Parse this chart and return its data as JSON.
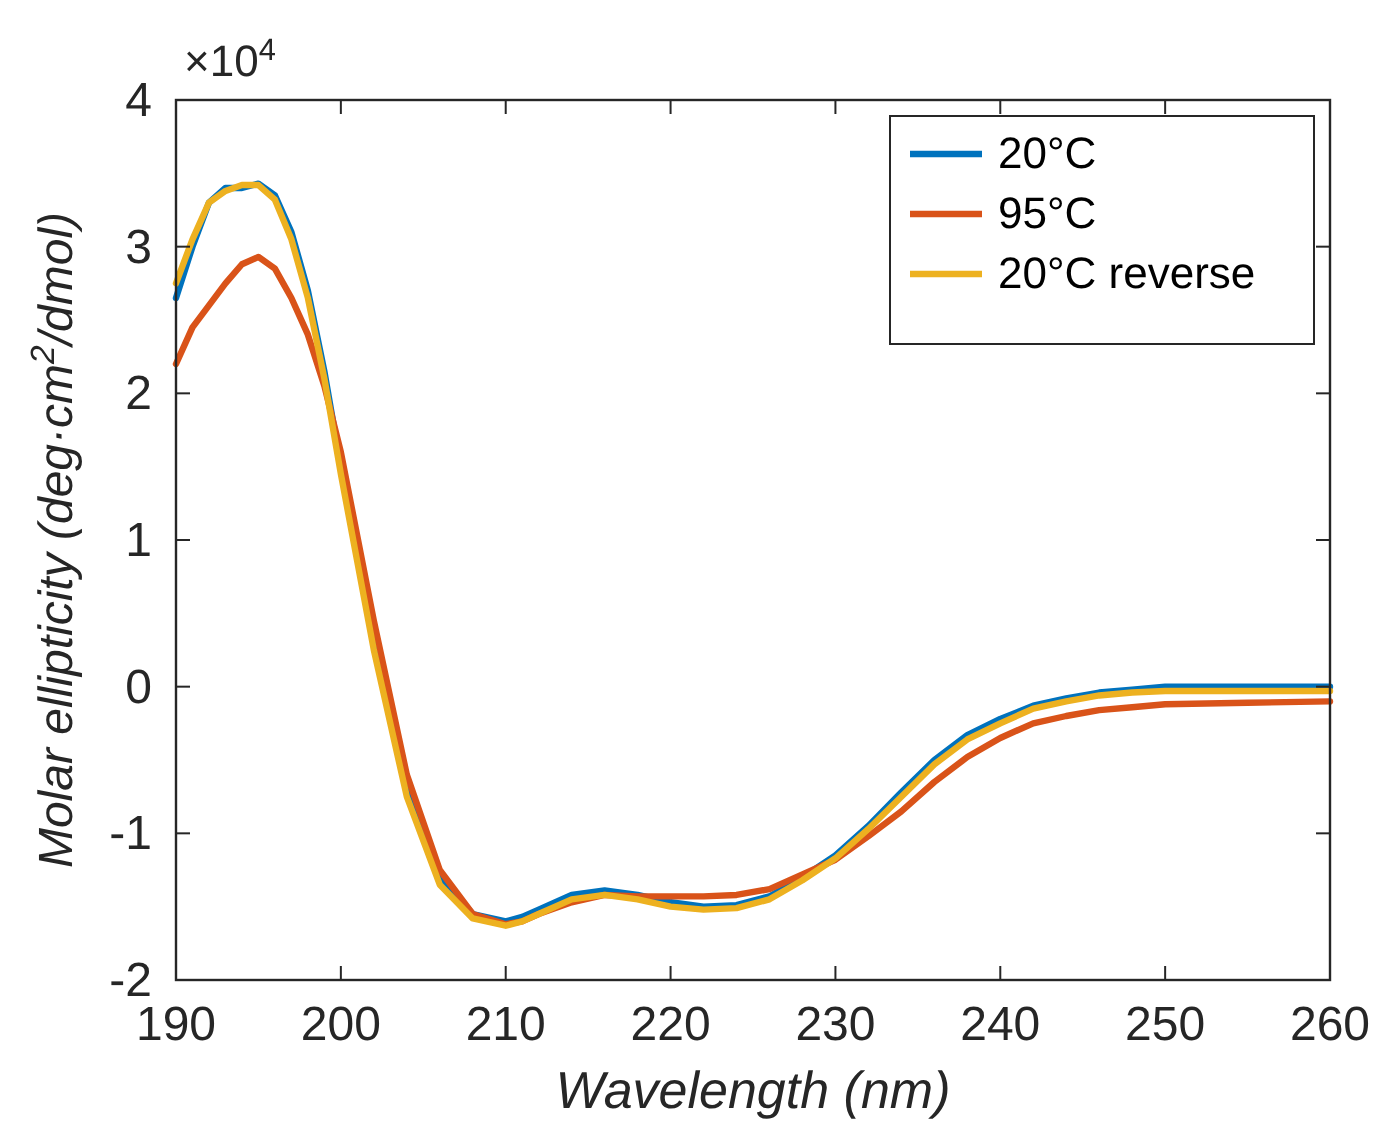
{
  "chart_data": {
    "type": "line",
    "xlabel": "Wavelength (nm)",
    "ylabel": "Molar ellipticity (deg·cm$^{2}$/dmol)",
    "annotations": [
      "×10$^{4}$"
    ],
    "x": [
      190,
      191,
      192,
      193,
      194,
      195,
      196,
      197,
      198,
      199,
      200,
      202,
      204,
      206,
      208,
      210,
      211,
      212,
      214,
      216,
      218,
      220,
      222,
      224,
      226,
      228,
      230,
      232,
      234,
      236,
      238,
      240,
      242,
      244,
      246,
      248,
      250,
      255,
      260
    ],
    "series": [
      {
        "name": "20°C",
        "color": "#0072bd",
        "values": [
          2.65,
          3.0,
          3.3,
          3.4,
          3.4,
          3.43,
          3.35,
          3.1,
          2.7,
          2.15,
          1.5,
          0.3,
          -0.7,
          -1.3,
          -1.55,
          -1.6,
          -1.57,
          -1.52,
          -1.42,
          -1.39,
          -1.42,
          -1.47,
          -1.5,
          -1.49,
          -1.43,
          -1.3,
          -1.15,
          -0.95,
          -0.72,
          -0.5,
          -0.33,
          -0.22,
          -0.13,
          -0.08,
          -0.04,
          -0.02,
          0,
          0,
          0
        ]
      },
      {
        "name": "95°C",
        "color": "#d95319",
        "values": [
          2.2,
          2.45,
          2.6,
          2.75,
          2.88,
          2.93,
          2.85,
          2.65,
          2.4,
          2.05,
          1.6,
          0.45,
          -0.6,
          -1.25,
          -1.55,
          -1.62,
          -1.6,
          -1.55,
          -1.47,
          -1.42,
          -1.43,
          -1.43,
          -1.43,
          -1.42,
          -1.38,
          -1.28,
          -1.18,
          -1.02,
          -0.85,
          -0.65,
          -0.48,
          -0.35,
          -0.25,
          -0.2,
          -0.16,
          -0.14,
          -0.12,
          -0.11,
          -0.1
        ]
      },
      {
        "name": "20°C reverse",
        "color": "#edb120",
        "values": [
          2.75,
          3.05,
          3.3,
          3.38,
          3.42,
          3.42,
          3.32,
          3.05,
          2.65,
          2.1,
          1.45,
          0.25,
          -0.75,
          -1.35,
          -1.58,
          -1.63,
          -1.6,
          -1.55,
          -1.45,
          -1.42,
          -1.45,
          -1.5,
          -1.52,
          -1.51,
          -1.45,
          -1.32,
          -1.17,
          -0.97,
          -0.75,
          -0.53,
          -0.36,
          -0.25,
          -0.15,
          -0.1,
          -0.06,
          -0.04,
          -0.03,
          -0.03,
          -0.03
        ]
      }
    ],
    "xlim": [
      190,
      260
    ],
    "xticks": [
      190,
      200,
      210,
      220,
      230,
      240,
      250,
      260
    ],
    "ylim": [
      -2,
      4
    ],
    "yticks": [
      -2,
      -1,
      0,
      1,
      2,
      3,
      4
    ],
    "legend": "top right",
    "grid": false,
    "marker": "none",
    "line_style": "solid"
  }
}
